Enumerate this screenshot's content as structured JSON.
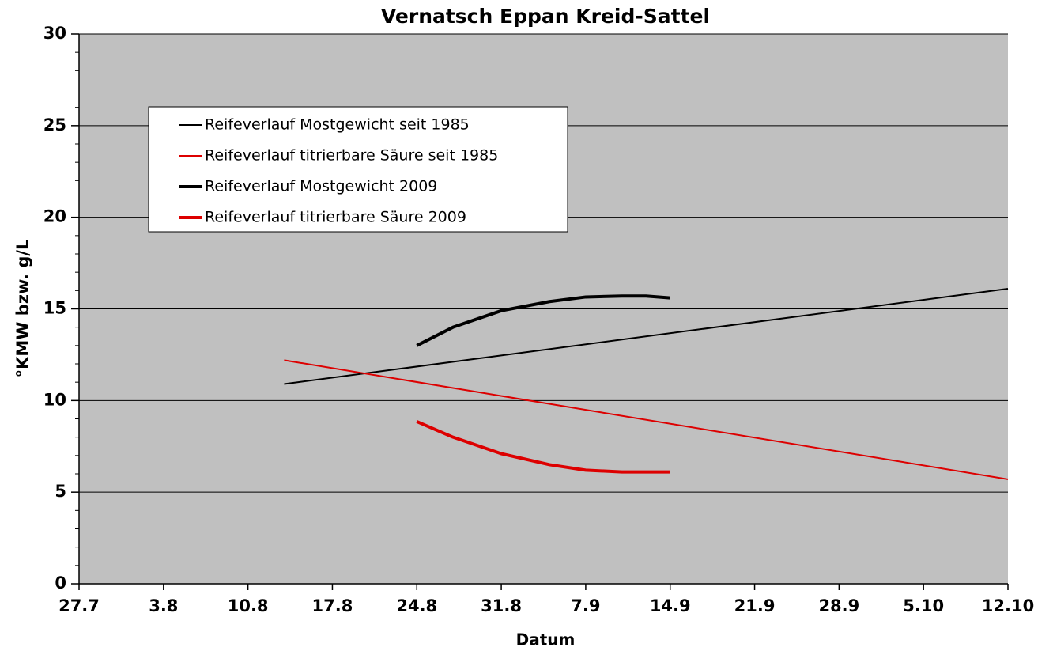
{
  "chart_data": {
    "type": "line",
    "title": "Vernatsch Eppan Kreid-Sattel",
    "xlabel": "Datum",
    "ylabel": "°KMW bzw. g/L",
    "xlim": [
      0,
      77
    ],
    "xticks": [
      {
        "value": 0,
        "label": "27.7"
      },
      {
        "value": 7,
        "label": "3.8"
      },
      {
        "value": 14,
        "label": "10.8"
      },
      {
        "value": 21,
        "label": "17.8"
      },
      {
        "value": 28,
        "label": "24.8"
      },
      {
        "value": 35,
        "label": "31.8"
      },
      {
        "value": 42,
        "label": "7.9"
      },
      {
        "value": 49,
        "label": "14.9"
      },
      {
        "value": 56,
        "label": "21.9"
      },
      {
        "value": 63,
        "label": "28.9"
      },
      {
        "value": 70,
        "label": "5.10"
      },
      {
        "value": 77,
        "label": "12.10"
      }
    ],
    "ylim": [
      0,
      30
    ],
    "yticks": [
      0,
      5,
      10,
      15,
      20,
      25,
      30
    ],
    "yminorticks": [
      1,
      2,
      3,
      4,
      6,
      7,
      8,
      9,
      11,
      12,
      13,
      14,
      16,
      17,
      18,
      19,
      21,
      22,
      23,
      24,
      26,
      27,
      28,
      29
    ],
    "grid": true,
    "legend": "upper left",
    "series": [
      {
        "name": "Reifeverlauf Mostgewicht seit 1985",
        "color": "#000000",
        "width": 2,
        "x": [
          17,
          77
        ],
        "values": [
          10.9,
          16.1
        ]
      },
      {
        "name": "Reifeverlauf titrierbare Säure seit 1985",
        "color": "#dd0000",
        "width": 2,
        "x": [
          17,
          77
        ],
        "values": [
          12.2,
          5.7
        ]
      },
      {
        "name": "Reifeverlauf Mostgewicht 2009",
        "color": "#000000",
        "width": 4,
        "x": [
          28,
          31,
          35,
          39,
          42,
          45,
          47,
          49
        ],
        "values": [
          13.0,
          14.0,
          14.9,
          15.4,
          15.65,
          15.7,
          15.7,
          15.6
        ]
      },
      {
        "name": "Reifeverlauf titrierbare Säure 2009",
        "color": "#dd0000",
        "width": 4,
        "x": [
          28,
          31,
          35,
          39,
          42,
          45,
          47,
          49
        ],
        "values": [
          8.85,
          8.0,
          7.1,
          6.5,
          6.2,
          6.1,
          6.1,
          6.1
        ]
      }
    ]
  }
}
